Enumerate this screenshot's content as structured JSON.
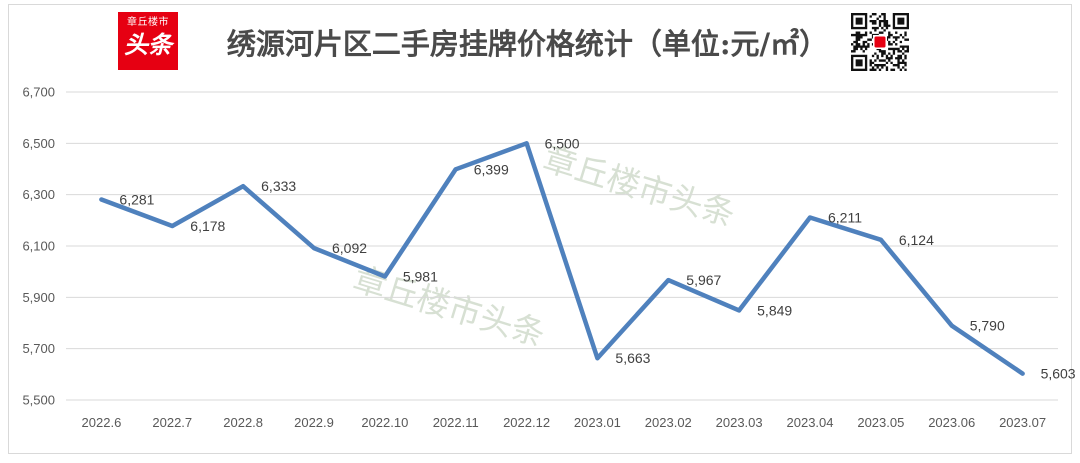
{
  "logo": {
    "top_text": "章丘楼市",
    "main_text": "头条"
  },
  "watermark": {
    "text": "章丘楼市头条"
  },
  "icons": {
    "qr": "qr-code-icon",
    "qr_center": "toutiao-logo-icon"
  },
  "colors": {
    "line": "#4f81bd",
    "grid": "#d9d9d9",
    "axis_text": "#595959",
    "label_text": "#404040",
    "logo_bg": "#e60012",
    "qr_dark": "#111111"
  },
  "chart_data": {
    "type": "line",
    "title": "绣源河片区二手房挂牌价格统计（单位:元/㎡）",
    "categories": [
      "2022.6",
      "2022.7",
      "2022.8",
      "2022.9",
      "2022.10",
      "2022.11",
      "2022.12",
      "2023.01",
      "2023.02",
      "2023.03",
      "2023.04",
      "2023.05",
      "2023.06",
      "2023.07"
    ],
    "series": [
      {
        "values": [
          6281,
          6178,
          6333,
          6092,
          5981,
          6399,
          6500,
          5663,
          5967,
          5849,
          6211,
          6124,
          5790,
          5603
        ],
        "labels": [
          "6,281",
          "6,178",
          "6,333",
          "6,092",
          "5,981",
          "6,399",
          "6,500",
          "5,663",
          "5,967",
          "5,849",
          "6,211",
          "6,124",
          "5,790",
          "5,603"
        ],
        "color": "#4f81bd"
      }
    ],
    "ylim": [
      5500,
      6700
    ],
    "yticks": [
      5500,
      5700,
      5900,
      6100,
      6300,
      6500,
      6700
    ],
    "ytick_labels": [
      "5,500",
      "5,700",
      "5,900",
      "6,100",
      "6,300",
      "6,500",
      "6,700"
    ],
    "grid": "horizontal",
    "legend": "none",
    "data_label_position": "right"
  }
}
